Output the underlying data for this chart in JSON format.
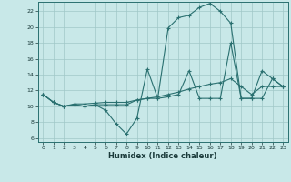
{
  "xlabel": "Humidex (Indice chaleur)",
  "bg_color": "#c8e8e8",
  "line_color": "#2a7070",
  "grid_color": "#a0c8c8",
  "xlim": [
    -0.5,
    23.5
  ],
  "ylim": [
    5.5,
    23.2
  ],
  "xticks": [
    0,
    1,
    2,
    3,
    4,
    5,
    6,
    7,
    8,
    9,
    10,
    11,
    12,
    13,
    14,
    15,
    16,
    17,
    18,
    19,
    20,
    21,
    22,
    23
  ],
  "yticks": [
    6,
    8,
    10,
    12,
    14,
    16,
    18,
    20,
    22
  ],
  "line1_x": [
    0,
    1,
    2,
    3,
    4,
    5,
    6,
    7,
    8,
    9,
    10,
    11,
    12,
    13,
    14,
    15,
    16,
    17,
    18,
    19,
    20,
    21,
    22,
    23
  ],
  "line1_y": [
    11.5,
    10.5,
    10.0,
    10.2,
    10.0,
    10.2,
    9.5,
    7.8,
    6.5,
    8.5,
    14.7,
    11.0,
    19.9,
    21.2,
    21.5,
    22.5,
    23.0,
    22.0,
    20.5,
    11.0,
    11.0,
    14.5,
    13.5,
    12.5
  ],
  "line2_x": [
    0,
    1,
    2,
    3,
    4,
    5,
    6,
    7,
    8,
    9,
    10,
    11,
    12,
    13,
    14,
    15,
    16,
    17,
    18,
    19,
    20,
    21,
    22,
    23
  ],
  "line2_y": [
    11.5,
    10.5,
    10.0,
    10.3,
    10.3,
    10.4,
    10.5,
    10.5,
    10.5,
    10.8,
    11.0,
    11.2,
    11.5,
    11.8,
    12.2,
    12.5,
    12.8,
    13.0,
    13.5,
    12.5,
    11.5,
    12.5,
    12.5,
    12.5
  ],
  "line3_x": [
    0,
    1,
    2,
    3,
    4,
    5,
    6,
    7,
    8,
    9,
    10,
    11,
    12,
    13,
    14,
    15,
    16,
    17,
    18,
    19,
    20,
    21,
    22,
    23
  ],
  "line3_y": [
    11.5,
    10.5,
    10.0,
    10.2,
    10.0,
    10.2,
    10.2,
    10.2,
    10.2,
    10.8,
    11.0,
    11.0,
    11.2,
    11.5,
    14.5,
    11.0,
    11.0,
    11.0,
    18.0,
    11.0,
    11.0,
    11.0,
    13.5,
    12.5
  ]
}
